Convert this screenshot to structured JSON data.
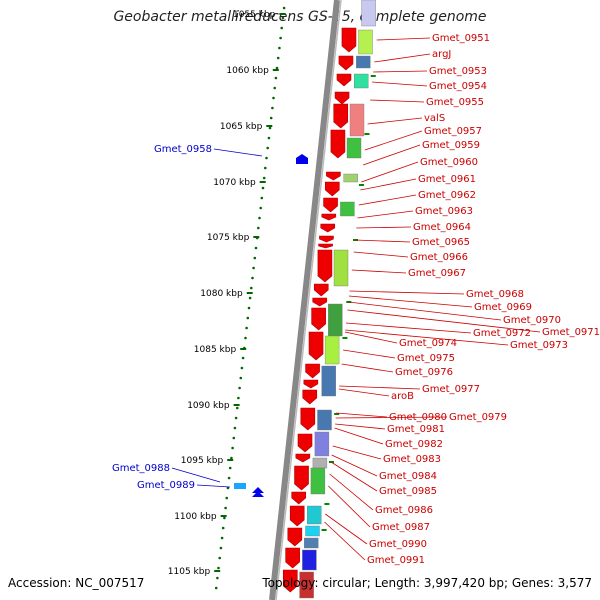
{
  "title": "Geobacter metallireducens GS-15, complete genome",
  "footer": {
    "accession": "Accession: NC_007517",
    "summary": "Topology: circular; Length: 3,997,420 bp; Genes: 3,577"
  },
  "ruler_labels": [
    "1055 kbp",
    "1060 kbp",
    "1065 kbp",
    "1070 kbp",
    "1075 kbp",
    "1080 kbp",
    "1085 kbp",
    "1090 kbp",
    "1095 kbp",
    "1100 kbp",
    "1105 kbp"
  ],
  "left_labels": [
    "Gmet_0958",
    "Gmet_0988",
    "Gmet_0989"
  ],
  "right_labels": [
    "Gmet_0951",
    "argJ",
    "Gmet_0953",
    "Gmet_0954",
    "Gmet_0955",
    "valS",
    "Gmet_0957",
    "Gmet_0959",
    "Gmet_0960",
    "Gmet_0961",
    "Gmet_0962",
    "Gmet_0963",
    "Gmet_0964",
    "Gmet_0965",
    "Gmet_0966",
    "Gmet_0967",
    "Gmet_0968",
    "Gmet_0969",
    "Gmet_0970",
    "Gmet_0971",
    "Gmet_0972",
    "Gmet_0973",
    "Gmet_0974",
    "Gmet_0975",
    "Gmet_0976",
    "Gmet_0977",
    "aroB",
    "Gmet_0980",
    "Gmet_0979",
    "Gmet_0981",
    "Gmet_0982",
    "Gmet_0983",
    "Gmet_0984",
    "Gmet_0985",
    "Gmet_0986",
    "Gmet_0987",
    "Gmet_0990",
    "Gmet_0991"
  ],
  "colors": {
    "forward_label": "#cc0000",
    "reverse_label": "#0000cc",
    "gene_arrow": "#ee0000",
    "reverse_gene": "#0000ee",
    "ruler_dot": "#006600",
    "backbone": "#888888"
  }
}
